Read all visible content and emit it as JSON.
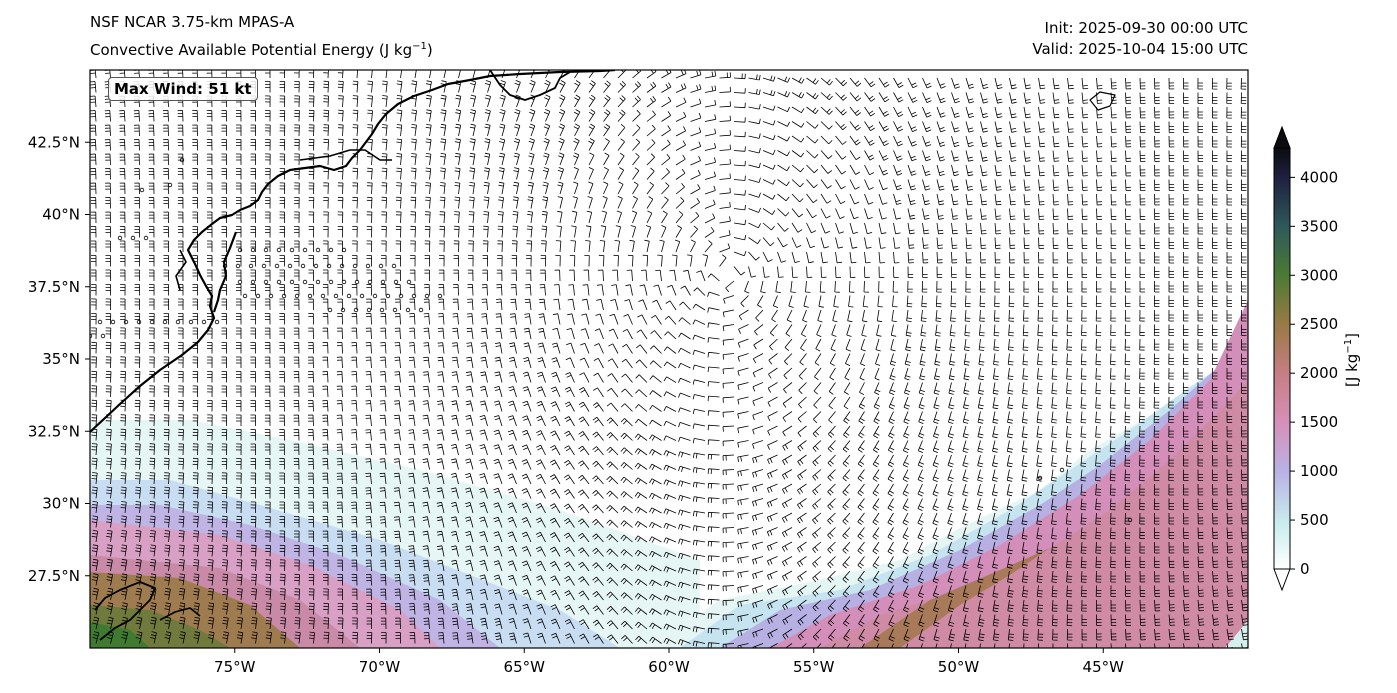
{
  "header": {
    "model": "NSF NCAR 3.75-km MPAS-A",
    "field": "Convective Available Potential Energy (J kg",
    "field_exp": "−1",
    "field_close": ")",
    "init": "Init: 2025-09-30 00:00 UTC",
    "valid": "Valid: 2025-10-04 15:00 UTC"
  },
  "annotation": {
    "max_wind": "Max Wind: 51 kt"
  },
  "map": {
    "lon_range": [
      -80,
      -40
    ],
    "lat_range": [
      25,
      45
    ],
    "lon_ticks": [
      -75,
      -70,
      -65,
      -60,
      -55,
      -50,
      -45
    ],
    "lon_tick_labels": [
      "75°W",
      "70°W",
      "65°W",
      "60°W",
      "55°W",
      "50°W",
      "45°W"
    ],
    "lat_ticks": [
      27.5,
      30,
      32.5,
      35,
      37.5,
      40,
      42.5
    ],
    "lat_tick_labels": [
      "27.5°N",
      "30°N",
      "32.5°N",
      "35°N",
      "37.5°N",
      "40°N",
      "42.5°N"
    ]
  },
  "colorbar": {
    "label_main": "[J kg",
    "label_exp": "−1",
    "label_close": "]",
    "range": [
      0,
      4300
    ],
    "ticks": [
      0,
      500,
      1000,
      1500,
      2000,
      2500,
      3000,
      3500,
      4000
    ],
    "tick_labels": [
      "0",
      "500",
      "1000",
      "1500",
      "2000",
      "2500",
      "3000",
      "3500",
      "4000"
    ],
    "colors": [
      "#ffffff",
      "#c8ecec",
      "#b9b2e6",
      "#d68fb8",
      "#c77e86",
      "#9a7a46",
      "#4a7a34",
      "#2f5a5a",
      "#1e2040",
      "#0b0b10"
    ]
  },
  "low_center": {
    "lon": -58,
    "lat": 38
  }
}
